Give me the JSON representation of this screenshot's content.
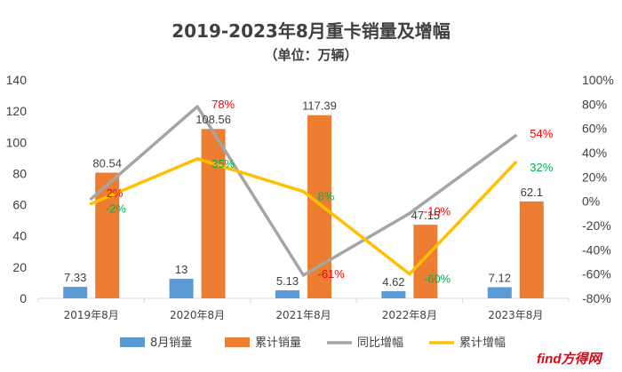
{
  "chart_data": {
    "type": "bar+line",
    "title": "2019-2023年8月重卡销量及增幅",
    "subtitle": "（单位：万辆）",
    "categories": [
      "2019年8月",
      "2020年8月",
      "2021年8月",
      "2022年8月",
      "2023年8月"
    ],
    "bar_series": [
      {
        "name": "8月销量",
        "color": "#5B9BD5",
        "values": [
          7.33,
          12.5,
          5.13,
          4.62,
          7.12
        ],
        "labels": [
          "7.33",
          "13",
          "5.13",
          "4.62",
          "7.12"
        ]
      },
      {
        "name": "累计销量",
        "color": "#ED7D31",
        "values": [
          80.54,
          108.56,
          117.39,
          47.15,
          62.1
        ],
        "labels": [
          "80.54",
          "108.56",
          "117.39",
          "47.15",
          "62.1"
        ]
      }
    ],
    "line_series": [
      {
        "name": "同比增幅",
        "color": "#A5A5A5",
        "values": [
          2,
          78,
          -61,
          -10,
          54
        ],
        "labels": [
          "2%",
          "78%",
          "-61%",
          "-10%",
          "54%"
        ],
        "label_color": "#FF0000"
      },
      {
        "name": "累计增幅",
        "color": "#FFC000",
        "values": [
          -2,
          35,
          8,
          -60,
          32
        ],
        "labels": [
          "-2%",
          "35%",
          "8%",
          "-60%",
          "32%"
        ],
        "label_color": "#00B050"
      }
    ],
    "left_axis": {
      "min": 0,
      "max": 140,
      "step": 20,
      "ticks": [
        "0",
        "20",
        "40",
        "60",
        "80",
        "100",
        "120",
        "140"
      ]
    },
    "right_axis": {
      "min": -80,
      "max": 100,
      "step": 20,
      "ticks": [
        "-80%",
        "-60%",
        "-40%",
        "-20%",
        "0%",
        "20%",
        "40%",
        "60%",
        "80%",
        "100%"
      ]
    },
    "legend": {
      "position": "bottom",
      "items": [
        "8月销量",
        "累计销量",
        "同比增幅",
        "累计增幅"
      ]
    },
    "grid": false
  },
  "watermark": {
    "text": "find方得网",
    "color": "#E60012"
  }
}
